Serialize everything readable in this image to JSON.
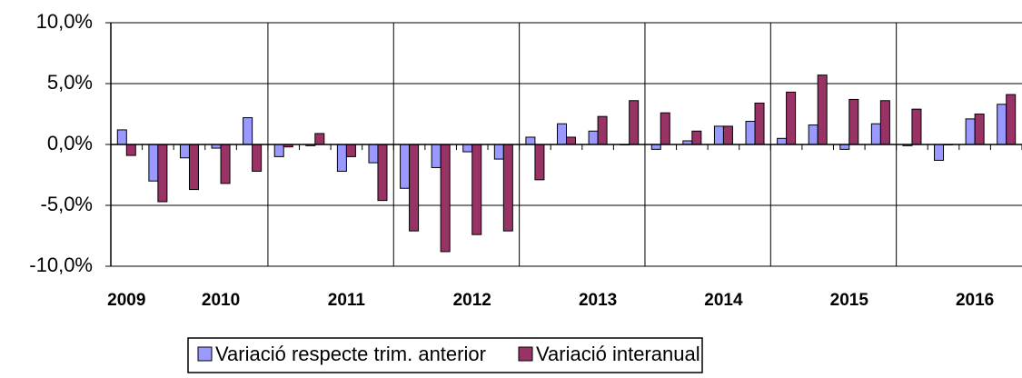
{
  "chart_data": {
    "type": "bar",
    "categories": [
      "2009",
      null,
      null,
      "2010",
      null,
      null,
      null,
      "2011",
      null,
      null,
      null,
      "2012",
      null,
      null,
      null,
      "2013",
      null,
      null,
      null,
      "2014",
      null,
      null,
      null,
      "2015",
      null,
      null,
      null,
      "2016",
      null
    ],
    "series": [
      {
        "name": "Variació respecte trim. anterior",
        "color": "#9999ff",
        "values": [
          1.2,
          -3.0,
          -1.1,
          -0.3,
          2.2,
          -1.0,
          -0.1,
          -2.2,
          -1.5,
          -3.6,
          -1.9,
          -0.6,
          -1.2,
          0.6,
          1.7,
          1.1,
          0.0,
          -0.4,
          0.3,
          1.5,
          1.9,
          0.5,
          1.6,
          -0.4,
          1.7,
          -0.1,
          -1.3,
          2.1,
          3.3
        ]
      },
      {
        "name": "Variació interanual",
        "color": "#993366",
        "values": [
          -0.9,
          -4.7,
          -3.7,
          -3.2,
          -2.2,
          -0.2,
          0.9,
          -1.0,
          -4.6,
          -7.1,
          -8.8,
          -7.4,
          -7.1,
          -2.9,
          0.6,
          2.3,
          3.6,
          2.6,
          1.1,
          1.5,
          3.4,
          4.3,
          5.7,
          3.7,
          3.6,
          2.9,
          0.0,
          2.5,
          4.1
        ]
      }
    ],
    "ylim": [
      -10,
      10
    ],
    "yticks": [
      {
        "value": -10,
        "label": "-10,0%"
      },
      {
        "value": -5,
        "label": "-5,0%"
      },
      {
        "value": 0,
        "label": "0,0%"
      },
      {
        "value": 5,
        "label": "5,0%"
      },
      {
        "value": 10,
        "label": "10,0%"
      }
    ],
    "grid": true,
    "legend": "bottom"
  }
}
